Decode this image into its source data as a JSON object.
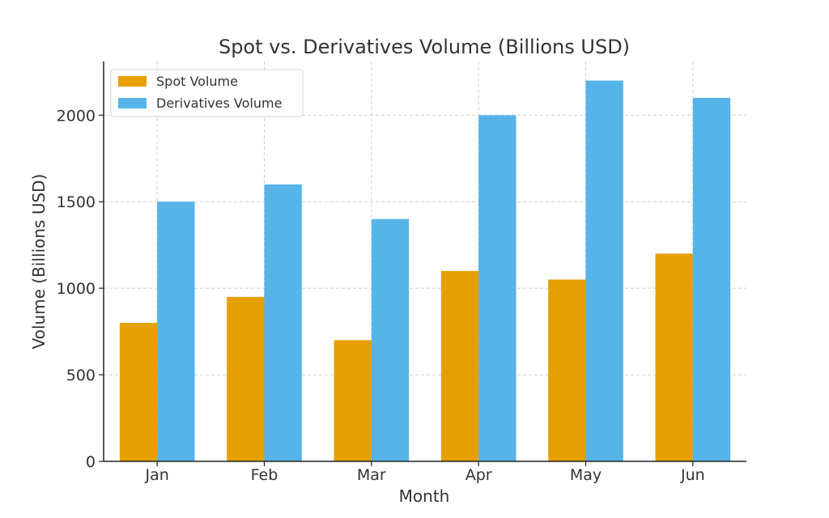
{
  "chart_data": {
    "type": "bar",
    "title": "Spot vs. Derivatives Volume (Billions USD)",
    "xlabel": "Month",
    "ylabel": "Volume (Billions USD)",
    "categories": [
      "Jan",
      "Feb",
      "Mar",
      "Apr",
      "May",
      "Jun"
    ],
    "series": [
      {
        "name": "Spot Volume",
        "color": "#e69f00",
        "values": [
          800,
          950,
          700,
          1100,
          1050,
          1200
        ]
      },
      {
        "name": "Derivatives Volume",
        "color": "#56b4e9",
        "values": [
          1500,
          1600,
          1400,
          2000,
          2200,
          2100
        ]
      }
    ],
    "ylim": [
      0,
      2310
    ],
    "yticks": [
      0,
      500,
      1000,
      1500,
      2000
    ],
    "grid": true,
    "legend_position": "top-left"
  }
}
